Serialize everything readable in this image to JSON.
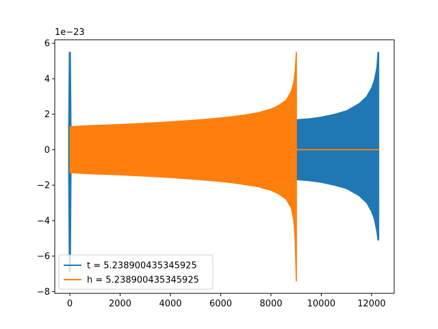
{
  "chart_data": {
    "type": "line",
    "title": "",
    "xlabel": "",
    "ylabel": "",
    "xlim": [
      -600,
      12900
    ],
    "ylim": [
      -8.1,
      6.2
    ],
    "y_offset_label": "1e−23",
    "x_ticks": [
      0,
      2000,
      4000,
      6000,
      8000,
      10000,
      12000
    ],
    "y_ticks": [
      -8,
      -6,
      -4,
      -2,
      0,
      2,
      4,
      6
    ],
    "x_tick_labels": [
      "0",
      "2000",
      "4000",
      "6000",
      "8000",
      "10000",
      "12000"
    ],
    "y_tick_labels": [
      "−8",
      "−6",
      "−4",
      "−2",
      "0",
      "2",
      "4",
      "6"
    ],
    "grid": false,
    "legend_position": "lower-left",
    "series": [
      {
        "name": "t = 5.238900435345925",
        "color": "#1f77b4",
        "envelope": {
          "x": [
            0,
            1000,
            2000,
            3000,
            4000,
            5000,
            6000,
            7000,
            8000,
            9000,
            9500,
            10000,
            10500,
            11000,
            11500,
            11800,
            12000,
            12100,
            12200,
            12250,
            12290
          ],
          "upper": [
            1.25,
            1.3,
            1.35,
            1.4,
            1.45,
            1.5,
            1.55,
            1.6,
            1.65,
            1.7,
            1.75,
            1.85,
            2.0,
            2.2,
            2.6,
            3.0,
            3.5,
            3.9,
            4.6,
            5.5,
            5.5
          ],
          "lower": [
            -1.25,
            -1.3,
            -1.35,
            -1.4,
            -1.45,
            -1.5,
            -1.55,
            -1.6,
            -1.65,
            -1.7,
            -1.75,
            -1.85,
            -2.0,
            -2.2,
            -2.6,
            -3.0,
            -3.5,
            -3.9,
            -4.6,
            -5.1,
            -5.1
          ]
        },
        "spikes": [
          {
            "x": 0,
            "max": 5.5,
            "min": -6.9
          }
        ]
      },
      {
        "name": "h = 5.238900435345925",
        "color": "#ff7f0e",
        "envelope": {
          "x": [
            0,
            500,
            1000,
            2000,
            3000,
            4000,
            5000,
            6000,
            6500,
            7000,
            7500,
            8000,
            8300,
            8600,
            8800,
            8900,
            8950,
            9000,
            9020
          ],
          "upper": [
            1.3,
            1.35,
            1.38,
            1.43,
            1.5,
            1.58,
            1.68,
            1.8,
            1.88,
            1.98,
            2.1,
            2.3,
            2.5,
            2.8,
            3.3,
            3.8,
            4.4,
            5.5,
            5.5
          ],
          "lower": [
            -1.3,
            -1.35,
            -1.38,
            -1.43,
            -1.5,
            -1.58,
            -1.68,
            -1.8,
            -1.88,
            -1.98,
            -2.1,
            -2.3,
            -2.5,
            -2.8,
            -3.3,
            -4.0,
            -5.0,
            -7.4,
            -7.4
          ]
        },
        "flat_tail": {
          "x_start": 9020,
          "x_end": 12290,
          "y": 0
        }
      }
    ]
  }
}
